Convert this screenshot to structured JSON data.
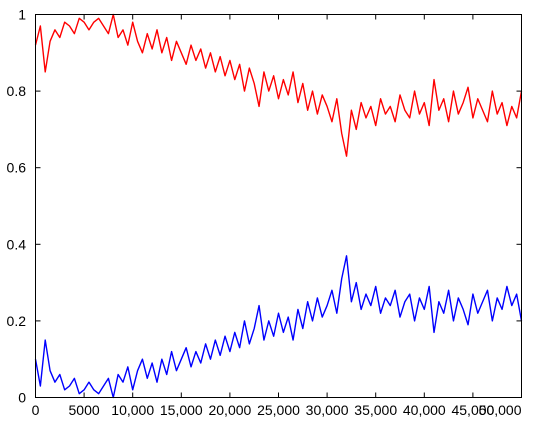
{
  "chart_data": {
    "type": "line",
    "title": "",
    "xlabel": "",
    "ylabel": "",
    "xlim": [
      0,
      50000
    ],
    "ylim": [
      0,
      1
    ],
    "grid": false,
    "legend": "none",
    "x_ticks": [
      {
        "value": 0,
        "label": "0"
      },
      {
        "value": 5000,
        "label": "5000"
      },
      {
        "value": 10000,
        "label": "10,000"
      },
      {
        "value": 15000,
        "label": "15,000"
      },
      {
        "value": 20000,
        "label": "20,000"
      },
      {
        "value": 25000,
        "label": "25,000"
      },
      {
        "value": 30000,
        "label": "30,000"
      },
      {
        "value": 35000,
        "label": "35,000"
      },
      {
        "value": 40000,
        "label": "40,000"
      },
      {
        "value": 45000,
        "label": "45,000"
      },
      {
        "value": 50000,
        "label": "50,000"
      }
    ],
    "y_ticks": [
      {
        "value": 0,
        "label": "0"
      },
      {
        "value": 0.2,
        "label": "0.2"
      },
      {
        "value": 0.4,
        "label": "0.4"
      },
      {
        "value": 0.6,
        "label": "0.6"
      },
      {
        "value": 0.8,
        "label": "0.8"
      },
      {
        "value": 1,
        "label": "1"
      }
    ],
    "x": [
      0,
      500,
      1000,
      1500,
      2000,
      2500,
      3000,
      3500,
      4000,
      4500,
      5000,
      5500,
      6000,
      6500,
      7000,
      7500,
      8000,
      8500,
      9000,
      9500,
      10000,
      10500,
      11000,
      11500,
      12000,
      12500,
      13000,
      13500,
      14000,
      14500,
      15000,
      15500,
      16000,
      16500,
      17000,
      17500,
      18000,
      18500,
      19000,
      19500,
      20000,
      20500,
      21000,
      21500,
      22000,
      22500,
      23000,
      23500,
      24000,
      24500,
      25000,
      25500,
      26000,
      26500,
      27000,
      27500,
      28000,
      28500,
      29000,
      29500,
      30000,
      30500,
      31000,
      31500,
      32000,
      32500,
      33000,
      33500,
      34000,
      34500,
      35000,
      35500,
      36000,
      36500,
      37000,
      37500,
      38000,
      38500,
      39000,
      39500,
      40000,
      40500,
      41000,
      41500,
      42000,
      42500,
      43000,
      43500,
      44000,
      44500,
      45000,
      45500,
      46000,
      46500,
      47000,
      47500,
      48000,
      48500,
      49000,
      49500,
      50000
    ],
    "series": [
      {
        "color": "#ff0000",
        "values": [
          0.92,
          0.97,
          0.85,
          0.93,
          0.96,
          0.94,
          0.98,
          0.97,
          0.95,
          0.99,
          0.98,
          0.96,
          0.98,
          0.99,
          0.97,
          0.95,
          1.0,
          0.94,
          0.96,
          0.92,
          0.98,
          0.93,
          0.9,
          0.95,
          0.91,
          0.96,
          0.9,
          0.94,
          0.88,
          0.93,
          0.9,
          0.87,
          0.92,
          0.88,
          0.91,
          0.86,
          0.9,
          0.85,
          0.89,
          0.84,
          0.88,
          0.83,
          0.87,
          0.8,
          0.86,
          0.82,
          0.76,
          0.85,
          0.8,
          0.84,
          0.78,
          0.83,
          0.79,
          0.85,
          0.77,
          0.82,
          0.75,
          0.8,
          0.74,
          0.79,
          0.76,
          0.72,
          0.78,
          0.69,
          0.63,
          0.75,
          0.7,
          0.77,
          0.73,
          0.76,
          0.71,
          0.78,
          0.74,
          0.76,
          0.72,
          0.79,
          0.75,
          0.73,
          0.8,
          0.74,
          0.77,
          0.71,
          0.83,
          0.75,
          0.78,
          0.72,
          0.8,
          0.74,
          0.77,
          0.81,
          0.73,
          0.78,
          0.75,
          0.72,
          0.8,
          0.74,
          0.77,
          0.71,
          0.76,
          0.73,
          0.8
        ]
      },
      {
        "color": "#0000ff",
        "values": [
          0.1,
          0.03,
          0.15,
          0.07,
          0.04,
          0.06,
          0.02,
          0.03,
          0.05,
          0.01,
          0.02,
          0.04,
          0.02,
          0.01,
          0.03,
          0.05,
          0.0,
          0.06,
          0.04,
          0.08,
          0.02,
          0.07,
          0.1,
          0.05,
          0.09,
          0.04,
          0.1,
          0.06,
          0.12,
          0.07,
          0.1,
          0.13,
          0.08,
          0.12,
          0.09,
          0.14,
          0.1,
          0.15,
          0.11,
          0.16,
          0.12,
          0.17,
          0.13,
          0.2,
          0.14,
          0.18,
          0.24,
          0.15,
          0.2,
          0.16,
          0.22,
          0.17,
          0.21,
          0.15,
          0.23,
          0.18,
          0.25,
          0.2,
          0.26,
          0.21,
          0.24,
          0.28,
          0.22,
          0.31,
          0.37,
          0.25,
          0.3,
          0.23,
          0.27,
          0.24,
          0.29,
          0.22,
          0.26,
          0.24,
          0.28,
          0.21,
          0.25,
          0.27,
          0.2,
          0.26,
          0.23,
          0.29,
          0.17,
          0.25,
          0.22,
          0.28,
          0.2,
          0.26,
          0.23,
          0.19,
          0.27,
          0.22,
          0.25,
          0.28,
          0.2,
          0.26,
          0.23,
          0.29,
          0.24,
          0.27,
          0.2
        ]
      }
    ]
  }
}
